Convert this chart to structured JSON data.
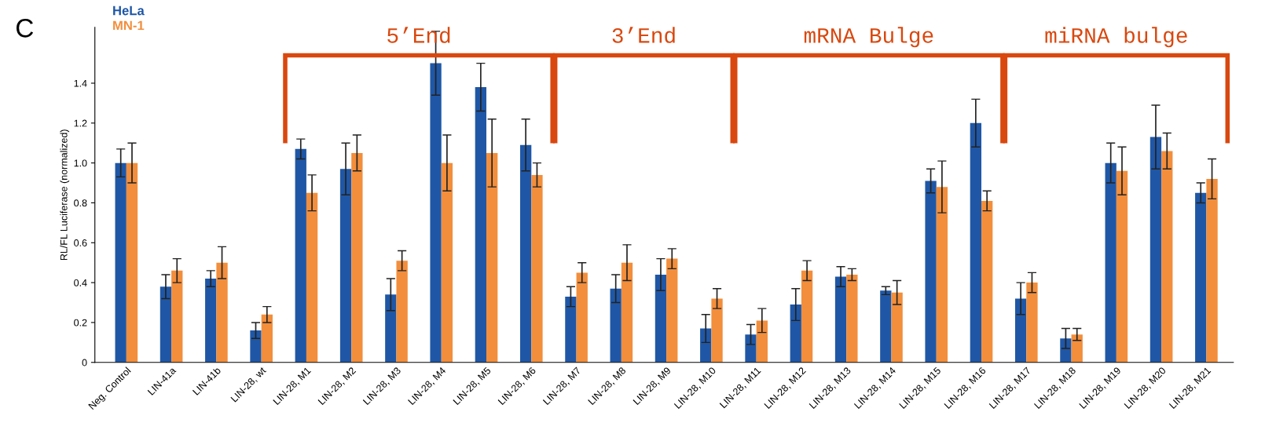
{
  "chart_data": {
    "type": "bar",
    "ylabel": "RL/FL Luciferase (normalized)",
    "categories": [
      "Neg. Control",
      "LIN-41a",
      "LIN-41b",
      "LIN-28, wt",
      "LIN-28, M1",
      "LIN-28, M2",
      "LIN-28, M3",
      "LIN-28, M4",
      "LIN-28, M5",
      "LIN-28, M6",
      "LIN-28, M7",
      "LIN-28, M8",
      "LIN-28, M9",
      "LIN-28, M10",
      "LIN-28, M11",
      "LIN-28, M12",
      "LIN-28, M13",
      "LIN-28, M14",
      "LIN-28, M15",
      "LIN-28, M16",
      "LIN-28, M17",
      "LIN-28, M18",
      "LIN-28, M19",
      "LIN-28, M20",
      "LIN-28, M21"
    ],
    "series": [
      {
        "name": "HeLa",
        "color": "#1f57a6",
        "values": [
          1.0,
          0.38,
          0.42,
          0.16,
          1.07,
          0.97,
          0.34,
          1.5,
          1.38,
          1.09,
          0.33,
          0.37,
          0.44,
          0.17,
          0.14,
          0.29,
          0.43,
          0.36,
          0.91,
          1.2,
          0.32,
          0.12,
          1.0,
          1.13,
          0.85
        ],
        "errors": [
          0.07,
          0.06,
          0.04,
          0.04,
          0.05,
          0.13,
          0.08,
          0.16,
          0.12,
          0.13,
          0.05,
          0.07,
          0.08,
          0.07,
          0.05,
          0.08,
          0.05,
          0.02,
          0.06,
          0.12,
          0.08,
          0.05,
          0.1,
          0.16,
          0.05
        ]
      },
      {
        "name": "MN-1",
        "color": "#f28e3c",
        "values": [
          1.0,
          0.46,
          0.5,
          0.24,
          0.85,
          1.05,
          0.51,
          1.0,
          1.05,
          0.94,
          0.45,
          0.5,
          0.52,
          0.32,
          0.21,
          0.46,
          0.44,
          0.35,
          0.88,
          0.81,
          0.4,
          0.14,
          0.96,
          1.06,
          0.92
        ],
        "errors": [
          0.1,
          0.06,
          0.08,
          0.04,
          0.09,
          0.09,
          0.05,
          0.14,
          0.17,
          0.06,
          0.05,
          0.09,
          0.05,
          0.05,
          0.06,
          0.05,
          0.03,
          0.06,
          0.13,
          0.05,
          0.05,
          0.03,
          0.12,
          0.09,
          0.1
        ]
      }
    ],
    "ylim": [
      0,
      1.68
    ],
    "yticks": [
      0,
      {
        "value": 0.2,
        "label": "0.2"
      },
      {
        "value": 0.4,
        "label": "0.4"
      },
      {
        "value": 0.6,
        "label": "0.6"
      },
      {
        "value": 0.8,
        "label": "0.8"
      },
      {
        "value": 1.0,
        "label": "1.0"
      },
      {
        "value": 1.2,
        "label": "1.2"
      },
      {
        "value": 1.4,
        "label": "1.4"
      }
    ],
    "legend": "top left",
    "grid": false,
    "annotations": [
      "C",
      "5’End",
      "3’End",
      "mRNA Bulge",
      "miRNA bulge"
    ]
  }
}
